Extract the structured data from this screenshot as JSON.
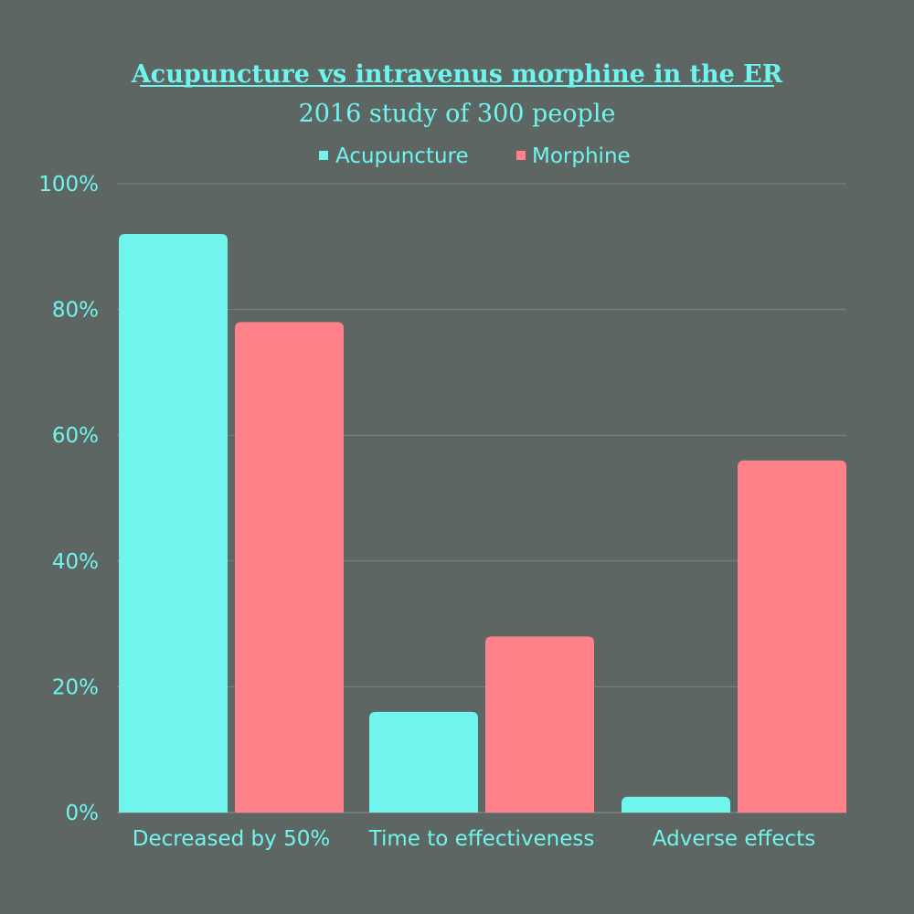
{
  "chart_data": {
    "type": "bar",
    "title": "Acupuncture vs intravenus morphine in the ER",
    "subtitle": "2016 study of 300 people",
    "categories": [
      "Decreased by 50%",
      "Time to effectiveness",
      "Adverse effects"
    ],
    "series": [
      {
        "name": "Acupuncture",
        "color": "#6ff5ee",
        "values": [
          92,
          16,
          2.5
        ]
      },
      {
        "name": "Morphine",
        "color": "#ff828b",
        "values": [
          78,
          28,
          56
        ]
      }
    ],
    "ylim": [
      0,
      100
    ],
    "yticks": [
      "0%",
      "20%",
      "40%",
      "60%",
      "80%",
      "100%"
    ],
    "ytick_values": [
      0,
      20,
      40,
      60,
      80,
      100
    ],
    "grid": true,
    "legend_position": "top-center"
  },
  "colors": {
    "background": "#5e6663",
    "text": "#6ff5ee",
    "grid": "#7c8581"
  }
}
